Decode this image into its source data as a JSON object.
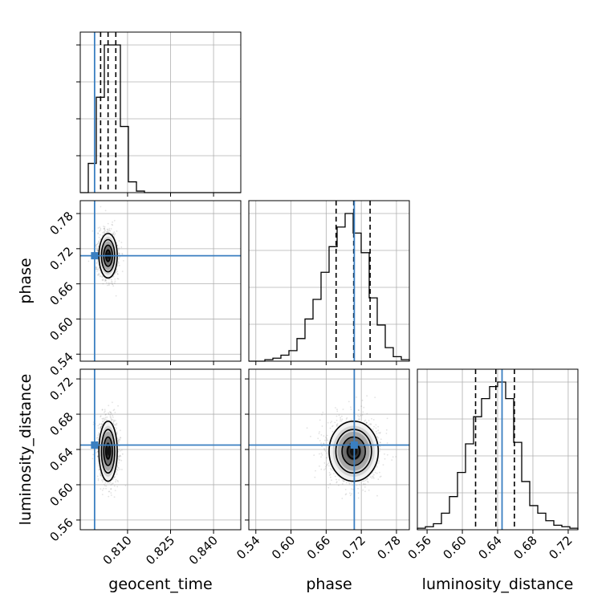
{
  "chart_data": {
    "type": "corner",
    "parameters": [
      {
        "name": "geocent_time",
        "axis_label": "geocent_time",
        "range": [
          0.7935,
          0.8495
        ],
        "ticks": [
          0.81,
          0.825,
          0.84
        ],
        "tick_labels": [
          "0.810",
          "0.825",
          "0.840"
        ],
        "truth": 0.7985,
        "quantiles": [
          0.8006,
          0.8032,
          0.8059
        ],
        "hist_edges": [
          0.7935,
          0.7963,
          0.7991,
          0.8019,
          0.8047,
          0.8075,
          0.8103,
          0.8131,
          0.8159,
          0.8187,
          0.8215
        ],
        "hist_heights": [
          0.0,
          0.19,
          0.62,
          0.96,
          0.96,
          0.43,
          0.07,
          0.01,
          0.0,
          0.0
        ]
      },
      {
        "name": "phase",
        "axis_label": "phase",
        "range": [
          0.528,
          0.802
        ],
        "ticks": [
          0.54,
          0.6,
          0.66,
          0.72,
          0.78
        ],
        "tick_labels": [
          "0.54",
          "0.60",
          "0.66",
          "0.72",
          "0.78"
        ],
        "truth": 0.708,
        "quantiles": [
          0.677,
          0.707,
          0.735
        ],
        "hist_edges": [
          0.528,
          0.5417,
          0.5554,
          0.5691,
          0.5828,
          0.5965,
          0.6102,
          0.6239,
          0.6376,
          0.6513,
          0.665,
          0.6787,
          0.6924,
          0.7061,
          0.7198,
          0.7335,
          0.7472,
          0.7609,
          0.7746,
          0.7883,
          0.802
        ],
        "hist_heights": [
          0.0,
          0.0,
          0.01,
          0.02,
          0.04,
          0.07,
          0.15,
          0.28,
          0.41,
          0.59,
          0.76,
          0.89,
          0.98,
          0.85,
          0.72,
          0.42,
          0.24,
          0.09,
          0.03,
          0.01
        ]
      },
      {
        "name": "luminosity_distance",
        "axis_label": "luminosity_distance",
        "range": [
          0.549,
          0.731
        ],
        "ticks": [
          0.56,
          0.6,
          0.64,
          0.68,
          0.72
        ],
        "tick_labels": [
          "0.56",
          "0.60",
          "0.64",
          "0.68",
          "0.72"
        ],
        "truth": 0.645,
        "quantiles": [
          0.615,
          0.638,
          0.659
        ],
        "hist_edges": [
          0.549,
          0.5581,
          0.5672,
          0.5763,
          0.5854,
          0.5945,
          0.6036,
          0.6127,
          0.6218,
          0.6309,
          0.64,
          0.6491,
          0.6582,
          0.6673,
          0.6764,
          0.6855,
          0.6946,
          0.7037,
          0.7128,
          0.7219,
          0.731
        ],
        "hist_heights": [
          0.01,
          0.02,
          0.04,
          0.11,
          0.22,
          0.38,
          0.57,
          0.75,
          0.87,
          0.95,
          0.98,
          0.87,
          0.58,
          0.32,
          0.16,
          0.11,
          0.06,
          0.03,
          0.02,
          0.01
        ]
      }
    ],
    "pairs": [
      {
        "x": "geocent_time",
        "y": "phase",
        "center": [
          0.8032,
          0.708
        ],
        "sigma": [
          0.0016,
          0.019
        ]
      },
      {
        "x": "geocent_time",
        "y": "luminosity_distance",
        "center": [
          0.8032,
          0.638
        ],
        "sigma": [
          0.0016,
          0.017
        ]
      },
      {
        "x": "phase",
        "y": "luminosity_distance",
        "center": [
          0.707,
          0.638
        ],
        "sigma": [
          0.021,
          0.017
        ]
      }
    ],
    "truth_color": "#3a7fc1",
    "grid": true,
    "quantile_levels": [
      0.16,
      0.5,
      0.84
    ]
  }
}
